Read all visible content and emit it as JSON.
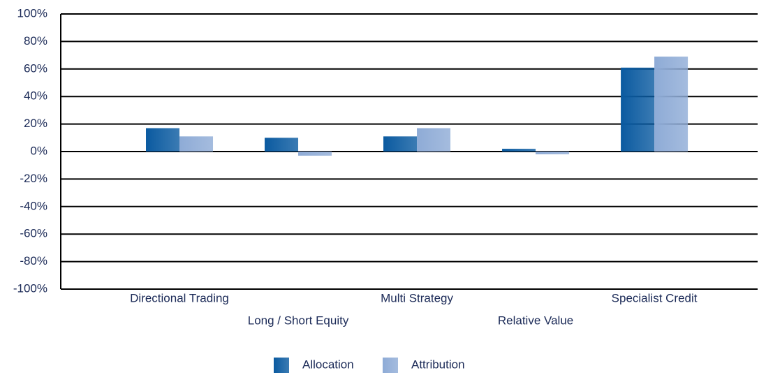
{
  "chart_data": {
    "type": "bar",
    "categories": [
      "Directional Trading",
      "Long / Short Equity",
      "Multi Strategy",
      "Relative Value",
      "Specialist Credit"
    ],
    "series": [
      {
        "name": "Allocation",
        "color": "#0a5aa0",
        "values": [
          17,
          10,
          11,
          2,
          61
        ]
      },
      {
        "name": "Attribution",
        "color": "#8eabd6",
        "values": [
          11,
          -3,
          17,
          -2,
          69
        ]
      }
    ],
    "ylim": [
      -100,
      100
    ],
    "yticks": [
      {
        "value": -100,
        "label": "-100%"
      },
      {
        "value": -80,
        "label": "-80%"
      },
      {
        "value": -60,
        "label": "-60%"
      },
      {
        "value": -40,
        "label": "-40%"
      },
      {
        "value": -20,
        "label": "-20%"
      },
      {
        "value": 0,
        "label": "0%"
      },
      {
        "value": 20,
        "label": "20%"
      },
      {
        "value": 40,
        "label": "40%"
      },
      {
        "value": 60,
        "label": "60%"
      },
      {
        "value": 80,
        "label": "80%"
      },
      {
        "value": 100,
        "label": "100%"
      }
    ],
    "grid": true,
    "legend": "bottom"
  }
}
